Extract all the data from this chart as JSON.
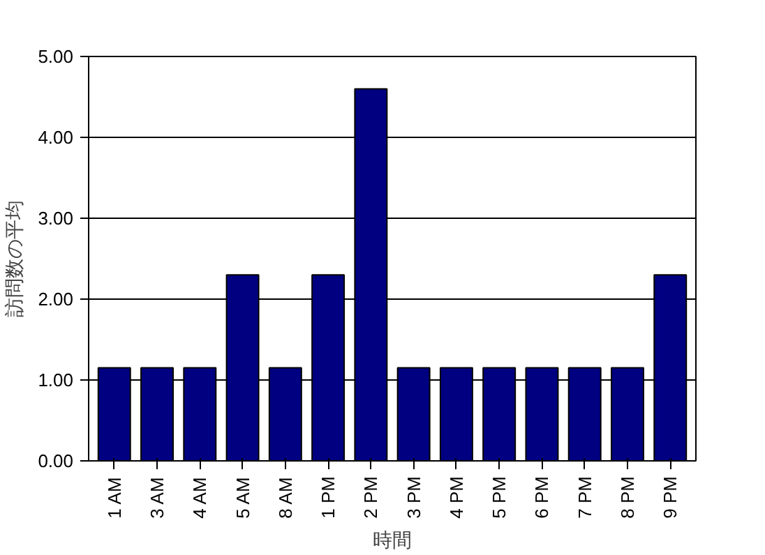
{
  "chart_data": {
    "type": "bar",
    "xlabel": "時間",
    "ylabel": "訪問数の平均",
    "categories": [
      "1 AM",
      "3 AM",
      "4 AM",
      "5 AM",
      "8 AM",
      "1 PM",
      "2 PM",
      "3 PM",
      "4 PM",
      "5 PM",
      "6 PM",
      "7 PM",
      "8 PM",
      "9 PM"
    ],
    "values": [
      1.15,
      1.15,
      1.15,
      2.3,
      1.15,
      2.3,
      4.6,
      1.15,
      1.15,
      1.15,
      1.15,
      1.15,
      1.15,
      2.3
    ],
    "color": "#000080",
    "ylim": [
      0,
      5
    ],
    "yticks": [
      {
        "value": 0,
        "label": "0.00"
      },
      {
        "value": 1,
        "label": "1.00"
      },
      {
        "value": 2,
        "label": "2.00"
      },
      {
        "value": 3,
        "label": "3.00"
      },
      {
        "value": 4,
        "label": "4.00"
      },
      {
        "value": 5,
        "label": "5.00"
      }
    ],
    "grid": "y"
  }
}
